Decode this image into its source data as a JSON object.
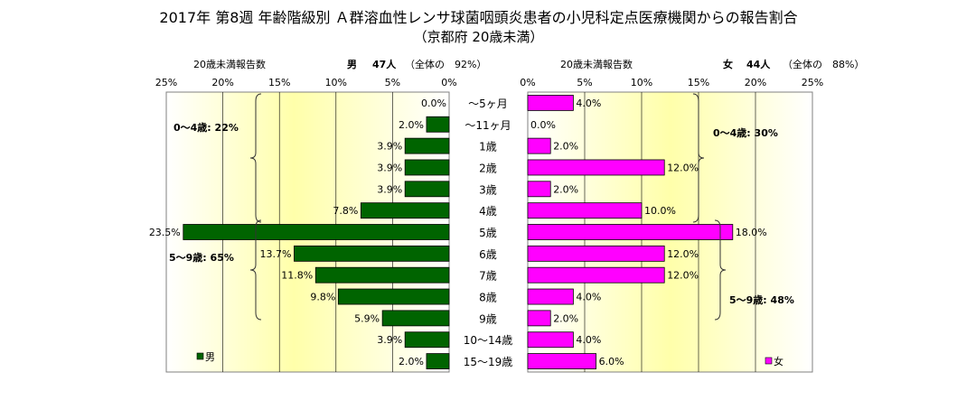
{
  "title": "2017年 第8週 年齢階級別 Ａ群溶血性レンサ球菌咽頭炎患者の小児科定点医療機関からの報告割合",
  "subtitle": "（京都府 20歳未満）",
  "header_left": {
    "caption": "20歳未満報告数",
    "sex": "男",
    "count": "47人",
    "share": "（全体の　92%）"
  },
  "header_right": {
    "caption": "20歳未満報告数",
    "sex": "女",
    "count": "44人",
    "share": "（全体の　88%）"
  },
  "colors": {
    "male": "#006400",
    "female": "#ff00ff",
    "bg_center": "#ffffaa"
  },
  "chart_data": {
    "type": "bar",
    "orientation": "horizontal-butterfly",
    "categories": [
      "～5ヶ月",
      "～11ヶ月",
      "1歳",
      "2歳",
      "3歳",
      "4歳",
      "5歳",
      "6歳",
      "7歳",
      "8歳",
      "9歳",
      "10～14歳",
      "15～19歳"
    ],
    "series": [
      {
        "name": "男",
        "values": [
          0.0,
          2.0,
          3.9,
          3.9,
          3.9,
          7.8,
          23.5,
          13.7,
          11.8,
          9.8,
          5.9,
          3.9,
          2.0
        ]
      },
      {
        "name": "女",
        "values": [
          4.0,
          0.0,
          2.0,
          12.0,
          2.0,
          10.0,
          18.0,
          12.0,
          12.0,
          4.0,
          2.0,
          4.0,
          6.0
        ]
      }
    ],
    "xlim": [
      0,
      25
    ],
    "ticks": [
      "25%",
      "20%",
      "15%",
      "10%",
      "5%",
      "0%"
    ],
    "ticks_right": [
      "0%",
      "5%",
      "10%",
      "15%",
      "20%",
      "25%"
    ],
    "value_labels_male": [
      "0.0%",
      "2.0%",
      "3.9%",
      "3.9%",
      "3.9%",
      "7.8%",
      "23.5%",
      "13.7%",
      "11.8%",
      "9.8%",
      "5.9%",
      "3.9%",
      "2.0%"
    ],
    "value_labels_female": [
      "4.0%",
      "0.0%",
      "2.0%",
      "12.0%",
      "2.0%",
      "10.0%",
      "18.0%",
      "12.0%",
      "12.0%",
      "4.0%",
      "2.0%",
      "4.0%",
      "6.0%"
    ],
    "annotations": {
      "male_0_4": "0～4歳: 22%",
      "male_5_9": "5～9歳: 65%",
      "female_0_4": "0～4歳: 30%",
      "female_5_9": "5～9歳: 48%"
    },
    "legend": {
      "male": "男",
      "female": "女"
    },
    "grid": true
  }
}
